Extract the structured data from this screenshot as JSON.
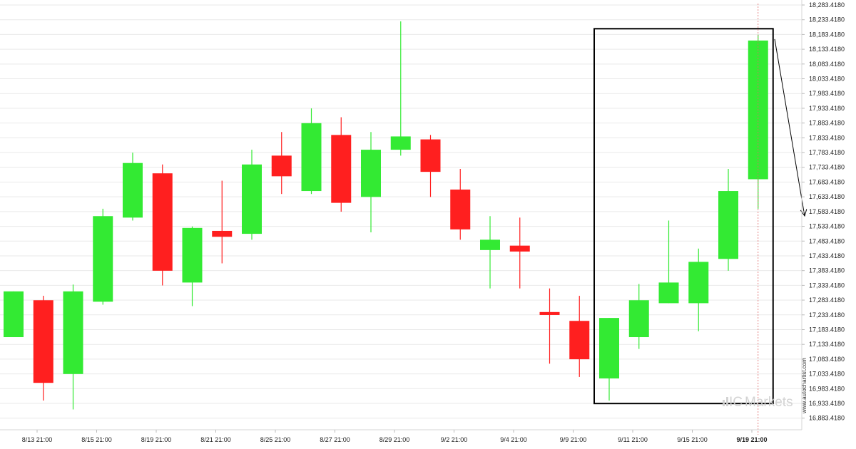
{
  "chart_data": {
    "type": "candlestick",
    "title": "",
    "y_axis": {
      "position": "right",
      "tick_labels": [
        "18,283.4180",
        "18,233.4180",
        "18,183.4180",
        "18,133.4180",
        "18,083.4180",
        "18,033.4180",
        "17,983.4180",
        "17,933.4180",
        "17,883.4180",
        "17,833.4180",
        "17,783.4180",
        "17,733.4180",
        "17,683.4180",
        "17,633.4180",
        "17,583.4180",
        "17,533.4180",
        "17,483.4180",
        "17,433.4180",
        "17,383.4180",
        "17,333.4180",
        "17,283.4180",
        "17,233.4180",
        "17,183.4180",
        "17,133.4180",
        "17,083.4180",
        "17,033.4180",
        "16,983.4180",
        "16,933.4180",
        "16,883.4180"
      ],
      "ylim": [
        16863.418,
        18283.418
      ]
    },
    "x_axis": {
      "tick_labels": [
        "8/13 21:00",
        "8/15 21:00",
        "8/19 21:00",
        "8/21 21:00",
        "8/25 21:00",
        "8/27 21:00",
        "8/29 21:00",
        "9/2 21:00",
        "9/4 21:00",
        "9/9 21:00",
        "9/11 21:00",
        "9/15 21:00",
        "9/19 21:00"
      ],
      "highlighted_label": "9/19 21:00"
    },
    "grid": true,
    "candles": [
      {
        "open": 17158,
        "high": 17313,
        "low": 17158,
        "close": 17313
      },
      {
        "open": 17283,
        "high": 17298,
        "low": 16943,
        "close": 17003
      },
      {
        "open": 17033,
        "high": 17336,
        "low": 16913,
        "close": 17313
      },
      {
        "open": 17278,
        "high": 17593,
        "low": 17268,
        "close": 17568
      },
      {
        "open": 17563,
        "high": 17783,
        "low": 17553,
        "close": 17748
      },
      {
        "open": 17713,
        "high": 17743,
        "low": 17333,
        "close": 17383
      },
      {
        "open": 17343,
        "high": 17533,
        "low": 17263,
        "close": 17528
      },
      {
        "open": 17518,
        "high": 17688,
        "low": 17408,
        "close": 17498
      },
      {
        "open": 17508,
        "high": 17793,
        "low": 17488,
        "close": 17743
      },
      {
        "open": 17773,
        "high": 17853,
        "low": 17643,
        "close": 17703
      },
      {
        "open": 17653,
        "high": 17933,
        "low": 17643,
        "close": 17883
      },
      {
        "open": 17843,
        "high": 17903,
        "low": 17583,
        "close": 17613
      },
      {
        "open": 17633,
        "high": 17853,
        "low": 17513,
        "close": 17793
      },
      {
        "open": 17793,
        "high": 18228,
        "low": 17773,
        "close": 17838
      },
      {
        "open": 17828,
        "high": 17843,
        "low": 17633,
        "close": 17718
      },
      {
        "open": 17658,
        "high": 17728,
        "low": 17488,
        "close": 17523
      },
      {
        "open": 17453,
        "high": 17568,
        "low": 17323,
        "close": 17488
      },
      {
        "open": 17468,
        "high": 17563,
        "low": 17323,
        "close": 17448
      },
      {
        "open": 17243,
        "high": 17323,
        "low": 17068,
        "close": 17233
      },
      {
        "open": 17213,
        "high": 17298,
        "low": 17023,
        "close": 17083
      },
      {
        "open": 17018,
        "high": 17223,
        "low": 16943,
        "close": 17223
      },
      {
        "open": 17158,
        "high": 17338,
        "low": 17118,
        "close": 17283
      },
      {
        "open": 17273,
        "high": 17553,
        "low": 17273,
        "close": 17343
      },
      {
        "open": 17273,
        "high": 17458,
        "low": 17178,
        "close": 17413
      },
      {
        "open": 17423,
        "high": 17728,
        "low": 17383,
        "close": 17653
      },
      {
        "open": 17693,
        "high": 18183,
        "low": 17593,
        "close": 18163
      }
    ],
    "annotation": {
      "type": "rectangle",
      "from_candle": 20,
      "to_candle": 25,
      "high": 18203,
      "low": 16933,
      "trend_arrow": "down",
      "arrow_from": 18163,
      "arrow_to": 17583
    },
    "colors": {
      "bull": "#33ea33",
      "bear": "#ff1f1f",
      "wick_bull": "#33ea33",
      "wick_bear": "#ff1f1f",
      "grid": "#e9e9e9",
      "box": "#000000",
      "cursor_line": "#e06a6a"
    }
  },
  "watermark": {
    "site": "www.autochartist.com",
    "brand_ic": "IC",
    "brand_markets": "Markets"
  }
}
